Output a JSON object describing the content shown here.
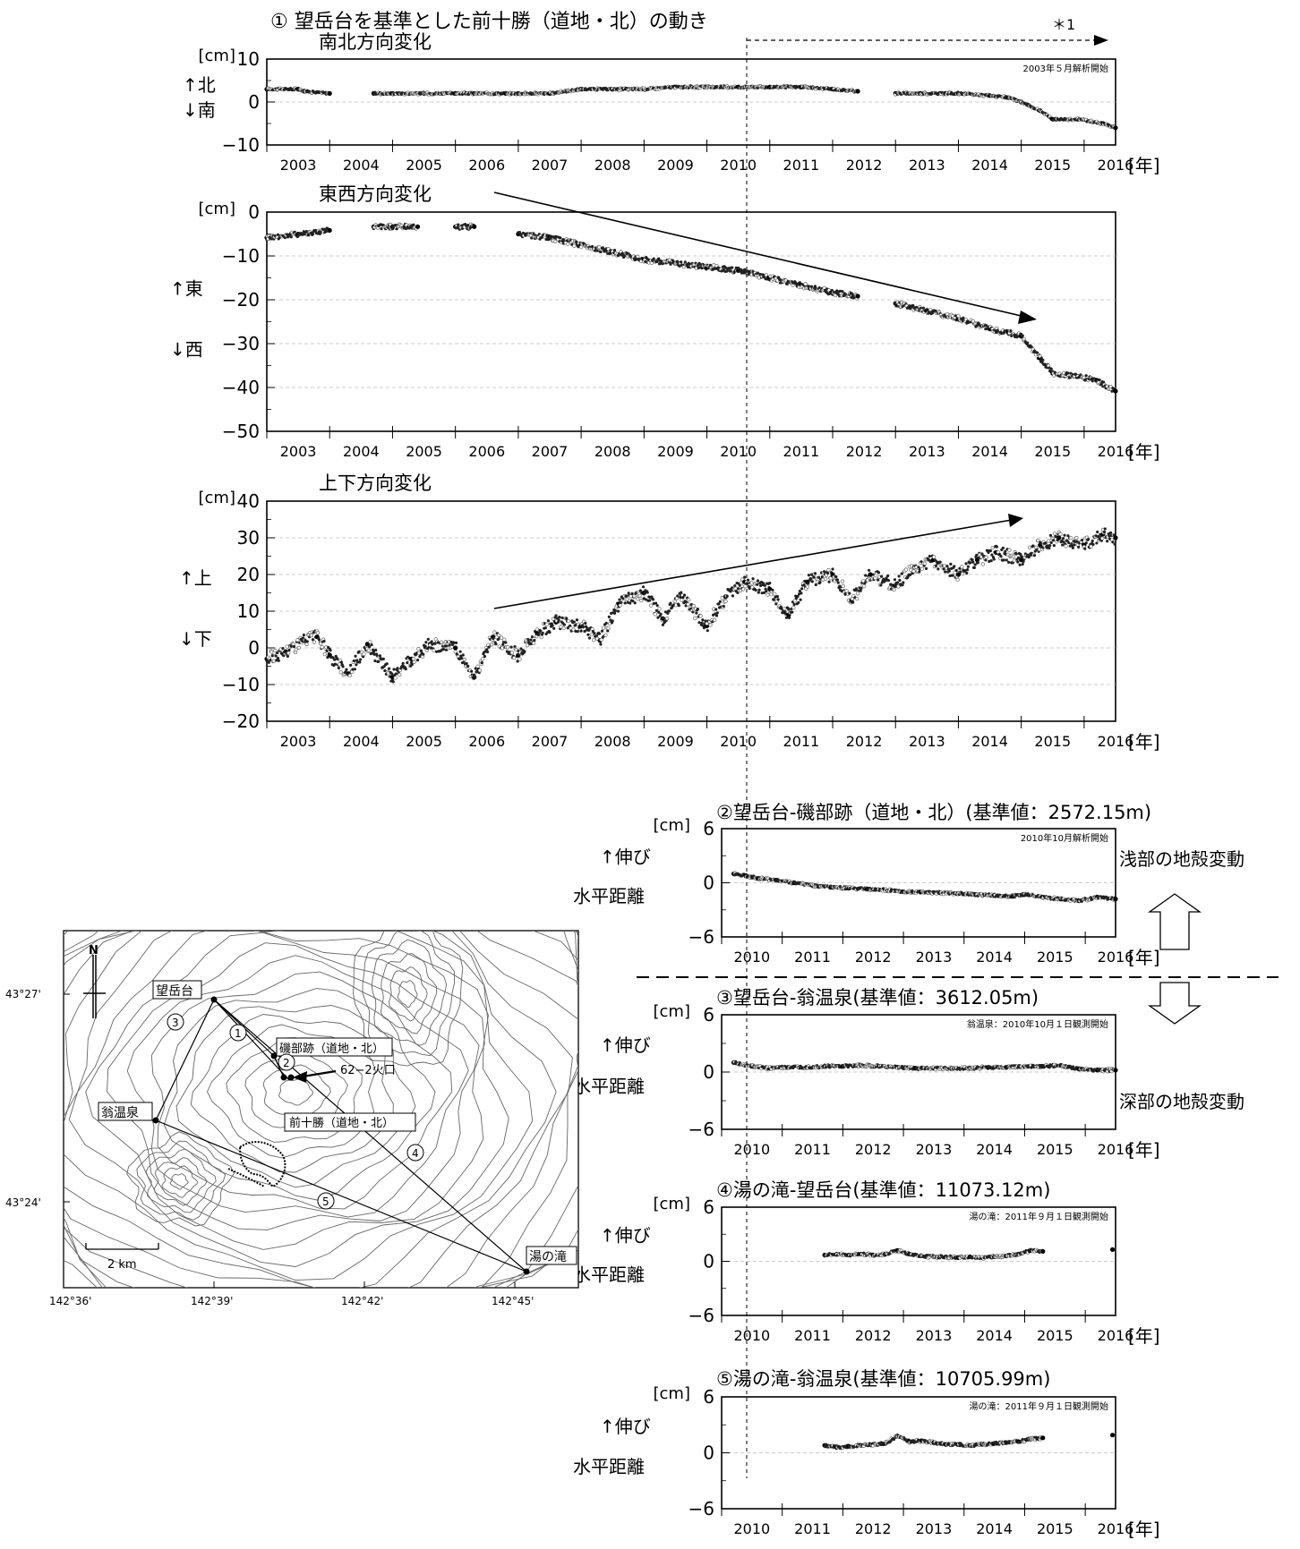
{
  "title": "① 望岳台を基準とした前十勝（道地・北）の動き",
  "note_star": "＊1",
  "year_unit": "[年]",
  "cm_unit": "[cm]",
  "years_full": [
    "2003",
    "2004",
    "2005",
    "2006",
    "2007",
    "2008",
    "2009",
    "2010",
    "2011",
    "2012",
    "2013",
    "2014",
    "2015",
    "2016"
  ],
  "years_short": [
    "2010",
    "2011",
    "2012",
    "2013",
    "2014",
    "2015",
    "2016"
  ],
  "sections": {
    "shallow": "浅部の地殻変動",
    "deep": "深部の地殻変動"
  },
  "chart_data": [
    {
      "type": "scatter",
      "id": "ns",
      "title": "南北方向変化",
      "ylabel_top": "↑北",
      "ylabel_bottom": "↓南",
      "ylim": [
        -10,
        10
      ],
      "ticks": [
        "10",
        "0",
        "−10"
      ],
      "note": "2003年５月解析開始",
      "xlim": [
        2003,
        2016.5
      ],
      "series": [
        {
          "x": [
            2003.0,
            2003.5,
            2003.6,
            2004.0,
            2004.7,
            2005.0,
            2005.5,
            2006.0,
            2006.3,
            2006.8,
            2007.0,
            2007.5,
            2008.0,
            2008.5,
            2009.0,
            2009.5,
            2010.0,
            2010.5,
            2011.0,
            2011.5,
            2012.0,
            2012.4,
            2013.0,
            2013.4,
            2013.8,
            2014.0,
            2014.5,
            2014.8,
            2015.0,
            2015.3,
            2015.5,
            2015.9,
            2016.3,
            2016.5
          ],
          "y": [
            3,
            3,
            2.5,
            2,
            2,
            2,
            2,
            2,
            2,
            2,
            2,
            2,
            3,
            3,
            3,
            3.5,
            3.5,
            3.5,
            3.5,
            3.5,
            3,
            2.5,
            2,
            2,
            2,
            2,
            1.5,
            1,
            0,
            -2,
            -4,
            -4,
            -5,
            -6
          ]
        }
      ]
    },
    {
      "type": "scatter",
      "id": "ew",
      "title": "東西方向変化",
      "ylabel_top": "↑東",
      "ylabel_bottom": "↓西",
      "ylim": [
        -55,
        5
      ],
      "ticks": [
        "0",
        "−10",
        "−20",
        "−30",
        "−40",
        "−50"
      ],
      "xlim": [
        2003,
        2016.5
      ],
      "series": [
        {
          "x": [
            2003.0,
            2003.5,
            2004.0,
            2004.7,
            2005.0,
            2005.4,
            2006.0,
            2006.3,
            2007.0,
            2007.5,
            2008.0,
            2008.5,
            2009.0,
            2009.5,
            2010.0,
            2010.5,
            2011.0,
            2011.5,
            2012.0,
            2012.4,
            2013.0,
            2013.5,
            2014.0,
            2014.5,
            2014.8,
            2015.0,
            2015.3,
            2015.5,
            2015.9,
            2016.2,
            2016.5
          ],
          "y": [
            -2,
            -1,
            0,
            1,
            1,
            1,
            1,
            1,
            -1,
            -2,
            -4,
            -6,
            -8,
            -9,
            -10,
            -11,
            -13,
            -15,
            -17,
            -18,
            -20,
            -22,
            -24,
            -27,
            -28,
            -29,
            -35,
            -39,
            -40,
            -41,
            -44
          ]
        }
      ]
    },
    {
      "type": "scatter",
      "id": "ud",
      "title": "上下方向変化",
      "ylabel_top": "↑上",
      "ylabel_bottom": "↓下",
      "ylim": [
        -20,
        40
      ],
      "ticks": [
        "40",
        "30",
        "20",
        "10",
        "0",
        "−10",
        "−20"
      ],
      "xlim": [
        2003,
        2016.5
      ],
      "series": [
        {
          "x": [
            2003.0,
            2003.3,
            2003.6,
            2003.8,
            2004.0,
            2004.3,
            2004.6,
            2005.0,
            2005.3,
            2005.6,
            2006.0,
            2006.3,
            2006.6,
            2007.0,
            2007.3,
            2007.6,
            2008.0,
            2008.3,
            2008.6,
            2009.0,
            2009.3,
            2009.6,
            2010.0,
            2010.3,
            2010.6,
            2011.0,
            2011.3,
            2011.6,
            2012.0,
            2012.3,
            2012.6,
            2013.0,
            2013.3,
            2013.6,
            2014.0,
            2014.3,
            2014.6,
            2015.0,
            2015.3,
            2015.6,
            2016.0,
            2016.3,
            2016.5
          ],
          "y": [
            -3,
            -1,
            2,
            3,
            -2,
            -7,
            1,
            -8,
            -3,
            1,
            0,
            -8,
            3,
            -2,
            4,
            7,
            6,
            2,
            12,
            15,
            8,
            14,
            6,
            14,
            18,
            16,
            9,
            18,
            20,
            13,
            20,
            17,
            22,
            24,
            20,
            24,
            26,
            24,
            28,
            30,
            28,
            31,
            30
          ]
        }
      ]
    },
    {
      "type": "scatter",
      "id": "d2",
      "title": "②望岳台-磯部跡（道地・北）(基準値：2572.15m)",
      "ylabel_top": "↑伸び",
      "ylabel_bottom": "水平距離",
      "ylim": [
        -6,
        6
      ],
      "ticks": [
        "6",
        "0",
        "−6"
      ],
      "note": "2010年10月解析開始",
      "xlim": [
        2010,
        2016.5
      ],
      "series": [
        {
          "x": [
            2010.2,
            2010.4,
            2010.6,
            2010.9,
            2011.2,
            2011.5,
            2011.8,
            2012.1,
            2012.4,
            2012.7,
            2013.0,
            2013.3,
            2013.6,
            2013.9,
            2014.2,
            2014.5,
            2014.8,
            2015.0,
            2015.3,
            2015.6,
            2015.9,
            2016.2,
            2016.5
          ],
          "y": [
            1,
            0.8,
            0.5,
            0.3,
            0,
            -0.3,
            -0.5,
            -0.6,
            -0.7,
            -0.8,
            -1,
            -1,
            -1.1,
            -1.2,
            -1.3,
            -1.4,
            -1.5,
            -1.3,
            -1.6,
            -1.8,
            -2,
            -1.6,
            -1.8
          ]
        }
      ]
    },
    {
      "type": "scatter",
      "id": "d3",
      "title": "③望岳台-翁温泉(基準値：3612.05m)",
      "ylabel_top": "↑伸び",
      "ylabel_bottom": "水平距離",
      "ylim": [
        -6,
        6
      ],
      "ticks": [
        "6",
        "0",
        "−6"
      ],
      "note": "翁温泉：2010年10月１日観測開始",
      "xlim": [
        2010,
        2016.5
      ],
      "series": [
        {
          "x": [
            2010.2,
            2010.5,
            2010.8,
            2011.1,
            2011.4,
            2011.7,
            2012.0,
            2012.3,
            2012.6,
            2012.9,
            2013.2,
            2013.5,
            2013.8,
            2014.1,
            2014.4,
            2014.7,
            2015.0,
            2015.3,
            2015.6,
            2015.9,
            2016.2,
            2016.5
          ],
          "y": [
            1,
            0.6,
            0.4,
            0.5,
            0.5,
            0.6,
            0.6,
            0.7,
            0.6,
            0.5,
            0.4,
            0.4,
            0.4,
            0.4,
            0.5,
            0.5,
            0.6,
            0.6,
            0.7,
            0.3,
            0.2,
            0.2
          ]
        }
      ]
    },
    {
      "type": "scatter",
      "id": "d4",
      "title": "④湯の滝-望岳台(基準値：11073.12m)",
      "ylabel_top": "↑伸び",
      "ylabel_bottom": "水平距離",
      "ylim": [
        -6,
        6
      ],
      "ticks": [
        "6",
        "0",
        "−6"
      ],
      "note": "湯の滝：2011年９月１日観測開始",
      "xlim": [
        2010,
        2016.5
      ],
      "series": [
        {
          "x": [
            2011.7,
            2011.9,
            2012.1,
            2012.3,
            2012.5,
            2012.7,
            2012.9,
            2013.1,
            2013.3,
            2013.5,
            2013.7,
            2013.9,
            2014.1,
            2014.3,
            2014.5,
            2014.7,
            2014.9,
            2015.1,
            2015.3,
            2016.45
          ],
          "y": [
            0.7,
            0.8,
            0.7,
            0.8,
            0.7,
            0.8,
            1.2,
            0.8,
            0.6,
            0.5,
            0.5,
            0.4,
            0.5,
            0.4,
            0.5,
            0.6,
            0.8,
            1.2,
            1.1,
            1.3
          ]
        }
      ]
    },
    {
      "type": "scatter",
      "id": "d5",
      "title": "⑤湯の滝-翁温泉(基準値：10705.99m)",
      "ylabel_top": "↑伸び",
      "ylabel_bottom": "水平距離",
      "ylim": [
        -6,
        6
      ],
      "ticks": [
        "6",
        "0",
        "−6"
      ],
      "note": "湯の滝：2011年９月１日観測開始",
      "xlim": [
        2010,
        2016.5
      ],
      "series": [
        {
          "x": [
            2011.7,
            2011.9,
            2012.1,
            2012.3,
            2012.5,
            2012.7,
            2012.9,
            2013.1,
            2013.3,
            2013.5,
            2013.7,
            2013.9,
            2014.1,
            2014.3,
            2014.5,
            2014.7,
            2014.9,
            2015.1,
            2015.3,
            2016.45
          ],
          "y": [
            0.8,
            0.6,
            0.7,
            0.8,
            0.9,
            1.0,
            1.8,
            1.2,
            1.3,
            1.1,
            0.9,
            0.9,
            0.8,
            0.9,
            1.0,
            1.1,
            1.2,
            1.5,
            1.6,
            1.9
          ]
        }
      ]
    }
  ],
  "map": {
    "stations": {
      "bogakudai": "望岳台",
      "isobe": "磯部跡（道地・北）",
      "maetokachi": "前十勝（道地・北）",
      "okina": "翁温泉",
      "yunotaki": "湯の滝",
      "crater": "62−2火口"
    },
    "baseline_labels": [
      "①",
      "②",
      "③",
      "④",
      "⑤"
    ],
    "scale": "2 km",
    "north": "N",
    "lat_labels": [
      "43°27'",
      "43°24'"
    ],
    "lon_labels": [
      "142°36'",
      "142°39'",
      "142°42'",
      "142°45'"
    ]
  }
}
